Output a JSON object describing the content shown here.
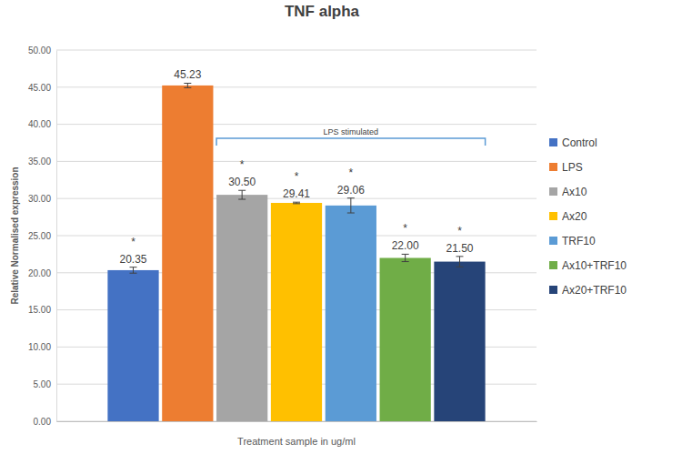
{
  "chart_data": {
    "type": "bar",
    "title": "TNF alpha",
    "x_label": "Treatment sample in ug/ml",
    "y_label": "Relative Normalised expression",
    "categories": [
      null
    ],
    "series": [
      {
        "name": "Control",
        "color": "#4472c4",
        "values": [
          20.35
        ],
        "value_labels": [
          "20.35"
        ],
        "errors": [
          0.4
        ]
      },
      {
        "name": "LPS",
        "color": "#ed7d31",
        "values": [
          45.23
        ],
        "value_labels": [
          "45.23"
        ],
        "errors": [
          0.3
        ]
      },
      {
        "name": "Ax10",
        "color": "#a5a5a5",
        "values": [
          30.5
        ],
        "value_labels": [
          "30.50"
        ],
        "errors": [
          0.6
        ]
      },
      {
        "name": "Ax20",
        "color": "#ffc000",
        "values": [
          29.41
        ],
        "value_labels": [
          "29.41"
        ],
        "errors": [
          0.1
        ]
      },
      {
        "name": "TRF10",
        "color": "#5b9bd5",
        "values": [
          29.06
        ],
        "value_labels": [
          "29.06"
        ],
        "errors": [
          1.0
        ]
      },
      {
        "name": "Ax10+TRF10",
        "color": "#70ad47",
        "values": [
          22.0
        ],
        "value_labels": [
          "22.00"
        ],
        "errors": [
          0.5
        ]
      },
      {
        "name": "Ax20+TRF10",
        "color": "#264478",
        "values": [
          21.5
        ],
        "value_labels": [
          "21.50"
        ],
        "errors": [
          0.7
        ]
      }
    ],
    "annotations": [
      {
        "text": "*",
        "series": "Control"
      },
      {
        "text": "*",
        "series": "Ax10"
      },
      {
        "text": "*",
        "series": "Ax20"
      },
      {
        "text": "*",
        "series": "TRF10"
      },
      {
        "text": "*",
        "series": "Ax10+TRF10"
      },
      {
        "text": "*",
        "series": "Ax20+TRF10"
      },
      {
        "text": "LPS stimulated",
        "from": "Ax10",
        "to": "Ax20+TRF10"
      }
    ],
    "ylim": [
      0,
      50
    ],
    "yticks": [
      {
        "value": 0,
        "label": "0.00"
      },
      {
        "value": 5,
        "label": "5.00"
      },
      {
        "value": 10,
        "label": "10.00"
      },
      {
        "value": 15,
        "label": "15.00"
      },
      {
        "value": 20,
        "label": "20.00"
      },
      {
        "value": 25,
        "label": "25.00"
      },
      {
        "value": 30,
        "label": "30.00"
      },
      {
        "value": 35,
        "label": "35.00"
      },
      {
        "value": 40,
        "label": "40.00"
      },
      {
        "value": 45,
        "label": "45.00"
      },
      {
        "value": 50,
        "label": "50.00"
      }
    ],
    "grid": true,
    "legend": "right",
    "data_labels": true
  }
}
